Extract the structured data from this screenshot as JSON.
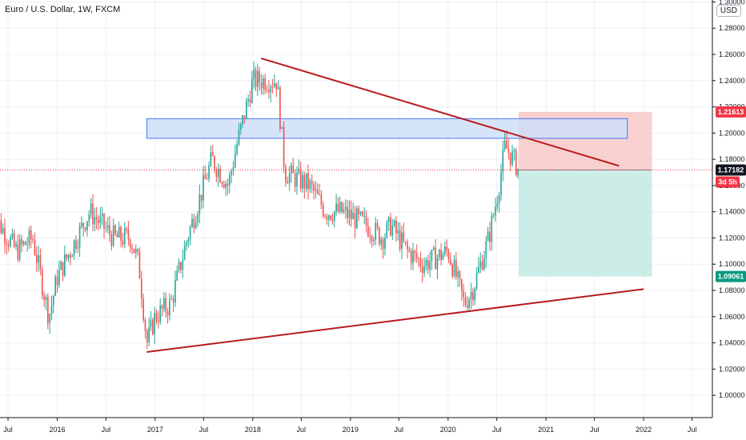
{
  "header": {
    "title": "Euro / U.S. Dollar, 1W, FXCM",
    "currency": "USD"
  },
  "chart_data": {
    "type": "candlestick",
    "title": "Euro / U.S. Dollar, 1W, FXCM",
    "ylim": [
      0.983,
      1.3015
    ],
    "y_ticks": [
      "1.00000",
      "1.02000",
      "1.04000",
      "1.06000",
      "1.08000",
      "1.10000",
      "1.12000",
      "1.14000",
      "1.16000",
      "1.18000",
      "1.20000",
      "1.22000",
      "1.24000",
      "1.26000",
      "1.28000",
      "1.30000"
    ],
    "x_tick_labels": [
      "Jul",
      "2016",
      "Jul",
      "2017",
      "Jul",
      "2018",
      "Jul",
      "2019",
      "Jul",
      "2020",
      "Jul",
      "2021",
      "Jul",
      "2022",
      "Jul"
    ],
    "x_ticks": [
      "2015-07",
      "2016-01",
      "2016-07",
      "2017-01",
      "2017-07",
      "2018-01",
      "2018-07",
      "2019-01",
      "2019-07",
      "2020-01",
      "2020-07",
      "2021-01",
      "2021-07",
      "2022-01",
      "2022-07"
    ],
    "price_path": [
      [
        "2015-05",
        1.14
      ],
      [
        "2015-08",
        1.11
      ],
      [
        "2015-10",
        1.12
      ],
      [
        "2015-12",
        1.06
      ],
      [
        "2016-01",
        1.09
      ],
      [
        "2016-05",
        1.14
      ],
      [
        "2016-08",
        1.12
      ],
      [
        "2016-10",
        1.12
      ],
      [
        "2016-11",
        1.1
      ],
      [
        "2016-12",
        1.04
      ],
      [
        "2017-01",
        1.06
      ],
      [
        "2017-03",
        1.07
      ],
      [
        "2017-05",
        1.12
      ],
      [
        "2017-08",
        1.18
      ],
      [
        "2017-10",
        1.16
      ],
      [
        "2017-11",
        1.19
      ],
      [
        "2018-01",
        1.24
      ],
      [
        "2018-02",
        1.24
      ],
      [
        "2018-04",
        1.24
      ],
      [
        "2018-05",
        1.17
      ],
      [
        "2018-08",
        1.16
      ],
      [
        "2018-10",
        1.14
      ],
      [
        "2018-12",
        1.14
      ],
      [
        "2019-03",
        1.13
      ],
      [
        "2019-05",
        1.12
      ],
      [
        "2019-06",
        1.13
      ],
      [
        "2019-08",
        1.11
      ],
      [
        "2019-10",
        1.1
      ],
      [
        "2020-01",
        1.11
      ],
      [
        "2020-02",
        1.09
      ],
      [
        "2020-03",
        1.07
      ],
      [
        "2020-04",
        1.08
      ],
      [
        "2020-05",
        1.1
      ],
      [
        "2020-06",
        1.12
      ],
      [
        "2020-07",
        1.15
      ],
      [
        "2020-08",
        1.19
      ],
      [
        "2020-09",
        1.18
      ],
      [
        "2020-09-20",
        1.17182
      ]
    ],
    "trendlines": [
      {
        "from": [
          "2018-02",
          1.257
        ],
        "to": [
          "2021-10",
          1.175
        ]
      },
      {
        "from": [
          "2016-12",
          1.033
        ],
        "to": [
          "2022-01",
          1.081
        ]
      }
    ],
    "resistance_zone": {
      "x": [
        "2016-12",
        "2021-11"
      ],
      "y": [
        1.196,
        1.211
      ]
    },
    "position": {
      "x": [
        "2020-09-20",
        "2022-02"
      ],
      "target": 1.09061,
      "entry": 1.17182,
      "stop": 1.21613
    },
    "price_labels": [
      {
        "value": "1.21613",
        "y": 1.21613,
        "color": "#f23645"
      },
      {
        "value": "1.17182",
        "y": 1.17182,
        "color": "#131722"
      },
      {
        "value": "1.09061",
        "y": 1.09061,
        "color": "#089981"
      }
    ],
    "countdown": "3d 5h",
    "colors": {
      "up": "#26a69a",
      "down": "#ef5350",
      "trend": "#b71c1c",
      "zone_fill": "#cfe0f8",
      "zone_stroke": "#2962ff",
      "loss_fill": "#f8c8c8",
      "profit_fill": "#c6ebe4",
      "grid": "#eef0f4"
    }
  }
}
